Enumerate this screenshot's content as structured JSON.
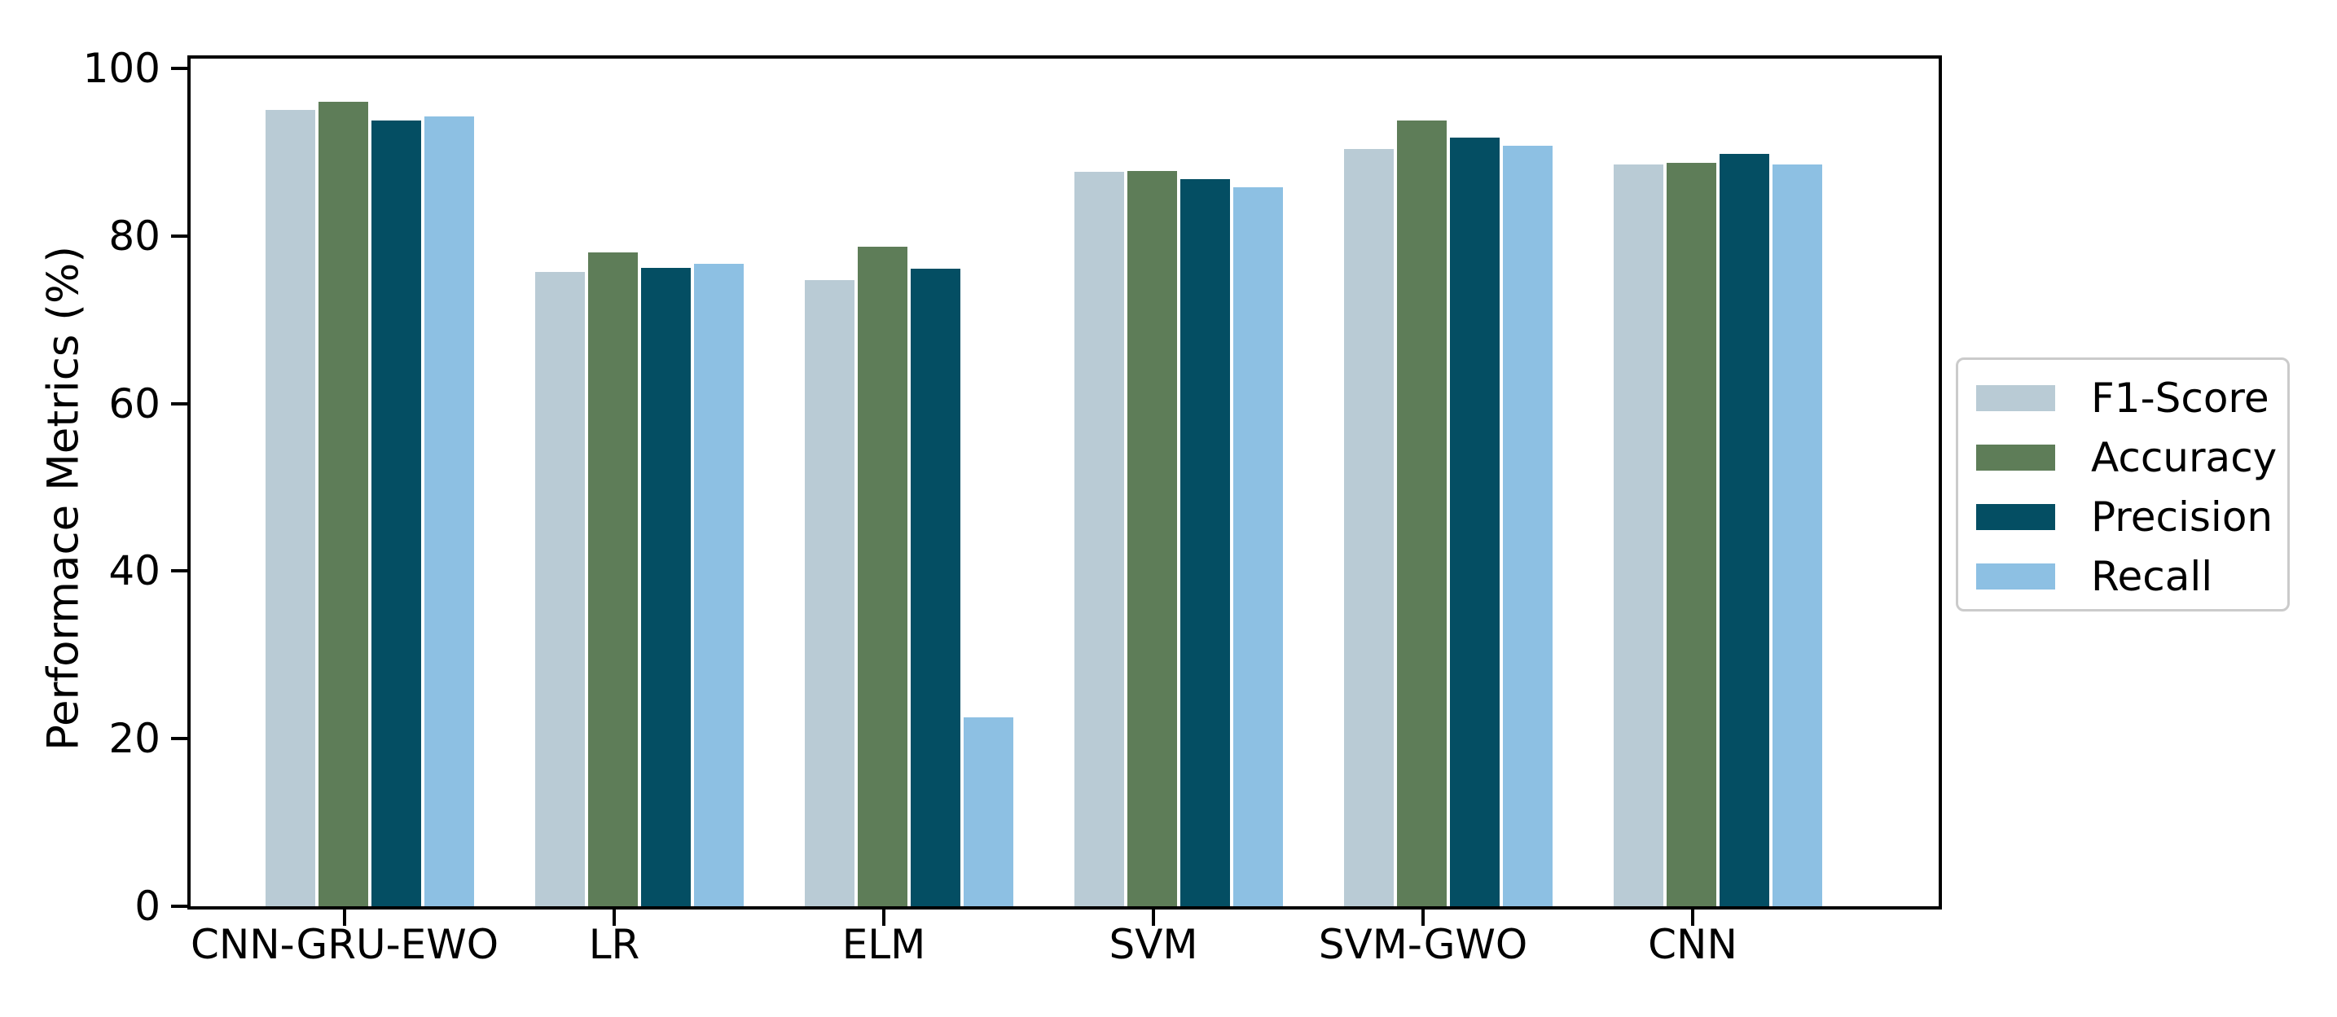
{
  "figure": {
    "background": "#ffffff",
    "spine_color": "#000000"
  },
  "chart_data": {
    "type": "bar",
    "title": "",
    "xlabel": "",
    "ylabel": "Performace Metrics (%)",
    "ylim": [
      0,
      102
    ],
    "grid": false,
    "y_ticks": [
      0,
      20,
      40,
      60,
      80,
      100
    ],
    "categories": [
      "CNN-GRU-EWO",
      "LR",
      "ELM",
      "SVM",
      "SVM-GWO",
      "CNN"
    ],
    "series": [
      {
        "name": "F1-Score",
        "color": "#b9cbd5",
        "values": [
          95.0,
          75.7,
          74.7,
          87.7,
          90.4,
          88.5
        ]
      },
      {
        "name": "Accuracy",
        "color": "#5e7d58",
        "values": [
          96.0,
          78.0,
          78.7,
          87.8,
          93.8,
          88.7
        ]
      },
      {
        "name": "Precision",
        "color": "#044e63",
        "values": [
          93.8,
          76.2,
          76.1,
          86.8,
          91.7,
          89.8
        ]
      },
      {
        "name": "Recall",
        "color": "#8dc0e3",
        "values": [
          94.3,
          76.7,
          22.5,
          85.8,
          90.8,
          88.5
        ]
      }
    ],
    "legend": {
      "position": "center-right",
      "border_color": "#cbcbcb",
      "labels": [
        "F1-Score",
        "Accuracy",
        "Precision",
        "Recall"
      ]
    }
  }
}
